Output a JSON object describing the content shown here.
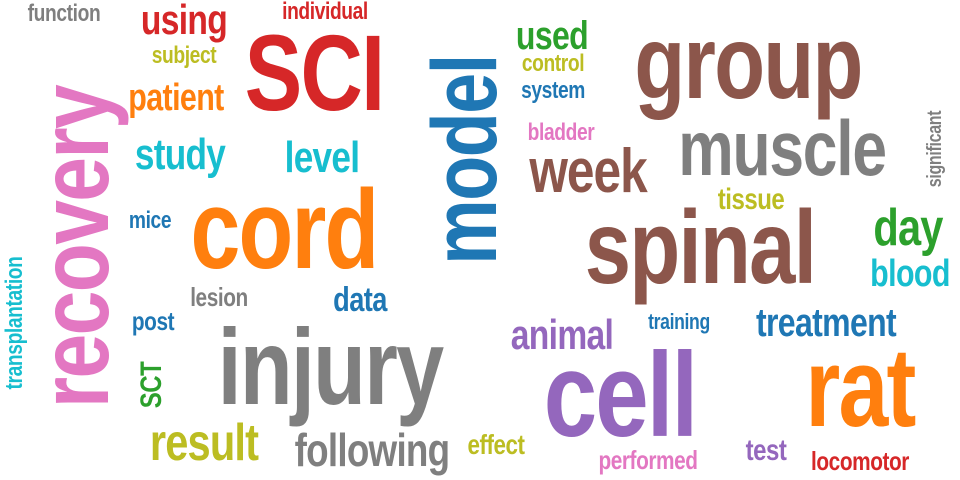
{
  "colors": {
    "pink": "#e377c2",
    "red": "#d62728",
    "brown": "#8c564b",
    "orange": "#ff7f0e",
    "blue": "#1f77b4",
    "green": "#2ca02c",
    "cyan": "#17becf",
    "olive": "#bcbd22",
    "purple": "#9467bd",
    "gray": "#7f7f7f"
  },
  "words": [
    {
      "text": "function",
      "color": "gray"
    },
    {
      "text": "using",
      "color": "red"
    },
    {
      "text": "individual",
      "color": "red"
    },
    {
      "text": "SCI",
      "color": "red"
    },
    {
      "text": "subject",
      "color": "olive"
    },
    {
      "text": "patient",
      "color": "orange"
    },
    {
      "text": "model",
      "color": "blue"
    },
    {
      "text": "used",
      "color": "green"
    },
    {
      "text": "control",
      "color": "olive"
    },
    {
      "text": "system",
      "color": "blue"
    },
    {
      "text": "group",
      "color": "brown"
    },
    {
      "text": "recovery",
      "color": "pink"
    },
    {
      "text": "study",
      "color": "cyan"
    },
    {
      "text": "level",
      "color": "cyan"
    },
    {
      "text": "bladder",
      "color": "pink"
    },
    {
      "text": "week",
      "color": "brown"
    },
    {
      "text": "muscle",
      "color": "gray"
    },
    {
      "text": "significant",
      "color": "gray"
    },
    {
      "text": "mice",
      "color": "blue"
    },
    {
      "text": "cord",
      "color": "orange"
    },
    {
      "text": "tissue",
      "color": "olive"
    },
    {
      "text": "spinal",
      "color": "brown"
    },
    {
      "text": "day",
      "color": "green"
    },
    {
      "text": "blood",
      "color": "cyan"
    },
    {
      "text": "transplantation",
      "color": "cyan"
    },
    {
      "text": "lesion",
      "color": "gray"
    },
    {
      "text": "data",
      "color": "blue"
    },
    {
      "text": "post",
      "color": "blue"
    },
    {
      "text": "animal",
      "color": "purple"
    },
    {
      "text": "training",
      "color": "blue"
    },
    {
      "text": "treatment",
      "color": "blue"
    },
    {
      "text": "injury",
      "color": "gray"
    },
    {
      "text": "SCT",
      "color": "green"
    },
    {
      "text": "cell",
      "color": "purple"
    },
    {
      "text": "rat",
      "color": "orange"
    },
    {
      "text": "result",
      "color": "olive"
    },
    {
      "text": "following",
      "color": "gray"
    },
    {
      "text": "effect",
      "color": "olive"
    },
    {
      "text": "test",
      "color": "purple"
    },
    {
      "text": "performed",
      "color": "pink"
    },
    {
      "text": "locomotor",
      "color": "red"
    }
  ]
}
